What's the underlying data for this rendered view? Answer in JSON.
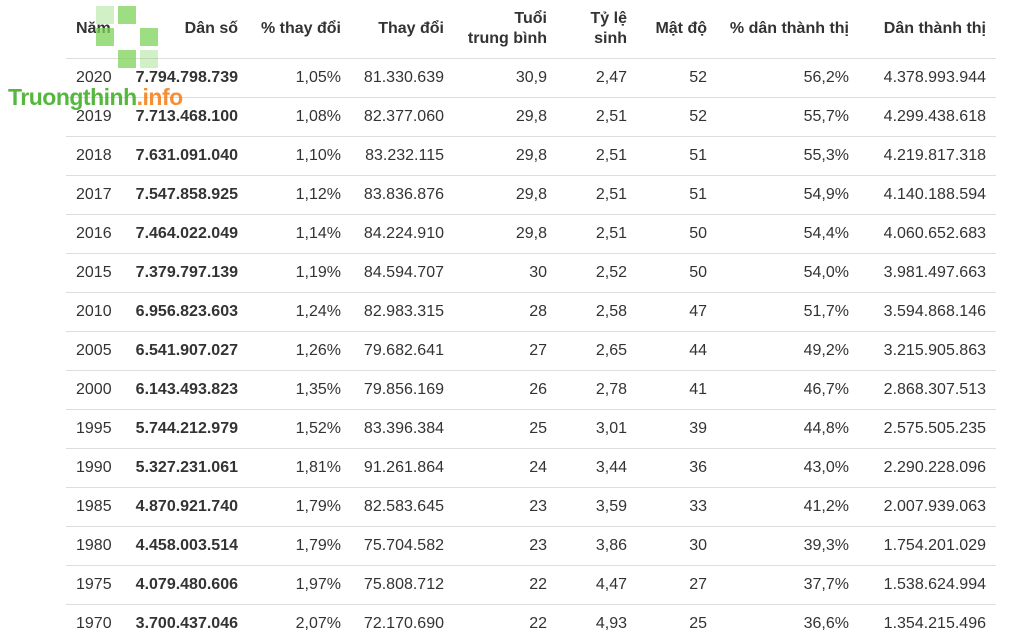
{
  "columns": [
    "Năm",
    "Dân số",
    "% thay đổi",
    "Thay đổi",
    "Tuổi trung bình",
    "Tỷ lệ sinh",
    "Mật độ",
    "% dân thành thị",
    "Dân thành thị"
  ],
  "median_age_header": {
    "line1": "Tuổi",
    "line2": "trung bình"
  },
  "rows": [
    {
      "year": "2020",
      "population": "7.794.798.739",
      "pct_change": "1,05%",
      "change": "81.330.639",
      "median_age": "30,9",
      "fertility": "2,47",
      "density": "52",
      "urban_pct": "56,2%",
      "urban_pop": "4.378.993.944"
    },
    {
      "year": "2019",
      "population": "7.713.468.100",
      "pct_change": "1,08%",
      "change": "82.377.060",
      "median_age": "29,8",
      "fertility": "2,51",
      "density": "52",
      "urban_pct": "55,7%",
      "urban_pop": "4.299.438.618"
    },
    {
      "year": "2018",
      "population": "7.631.091.040",
      "pct_change": "1,10%",
      "change": "83.232.115",
      "median_age": "29,8",
      "fertility": "2,51",
      "density": "51",
      "urban_pct": "55,3%",
      "urban_pop": "4.219.817.318"
    },
    {
      "year": "2017",
      "population": "7.547.858.925",
      "pct_change": "1,12%",
      "change": "83.836.876",
      "median_age": "29,8",
      "fertility": "2,51",
      "density": "51",
      "urban_pct": "54,9%",
      "urban_pop": "4.140.188.594"
    },
    {
      "year": "2016",
      "population": "7.464.022.049",
      "pct_change": "1,14%",
      "change": "84.224.910",
      "median_age": "29,8",
      "fertility": "2,51",
      "density": "50",
      "urban_pct": "54,4%",
      "urban_pop": "4.060.652.683"
    },
    {
      "year": "2015",
      "population": "7.379.797.139",
      "pct_change": "1,19%",
      "change": "84.594.707",
      "median_age": "30",
      "fertility": "2,52",
      "density": "50",
      "urban_pct": "54,0%",
      "urban_pop": "3.981.497.663"
    },
    {
      "year": "2010",
      "population": "6.956.823.603",
      "pct_change": "1,24%",
      "change": "82.983.315",
      "median_age": "28",
      "fertility": "2,58",
      "density": "47",
      "urban_pct": "51,7%",
      "urban_pop": "3.594.868.146"
    },
    {
      "year": "2005",
      "population": "6.541.907.027",
      "pct_change": "1,26%",
      "change": "79.682.641",
      "median_age": "27",
      "fertility": "2,65",
      "density": "44",
      "urban_pct": "49,2%",
      "urban_pop": "3.215.905.863"
    },
    {
      "year": "2000",
      "population": "6.143.493.823",
      "pct_change": "1,35%",
      "change": "79.856.169",
      "median_age": "26",
      "fertility": "2,78",
      "density": "41",
      "urban_pct": "46,7%",
      "urban_pop": "2.868.307.513"
    },
    {
      "year": "1995",
      "population": "5.744.212.979",
      "pct_change": "1,52%",
      "change": "83.396.384",
      "median_age": "25",
      "fertility": "3,01",
      "density": "39",
      "urban_pct": "44,8%",
      "urban_pop": "2.575.505.235"
    },
    {
      "year": "1990",
      "population": "5.327.231.061",
      "pct_change": "1,81%",
      "change": "91.261.864",
      "median_age": "24",
      "fertility": "3,44",
      "density": "36",
      "urban_pct": "43,0%",
      "urban_pop": "2.290.228.096"
    },
    {
      "year": "1985",
      "population": "4.870.921.740",
      "pct_change": "1,79%",
      "change": "82.583.645",
      "median_age": "23",
      "fertility": "3,59",
      "density": "33",
      "urban_pct": "41,2%",
      "urban_pop": "2.007.939.063"
    },
    {
      "year": "1980",
      "population": "4.458.003.514",
      "pct_change": "1,79%",
      "change": "75.704.582",
      "median_age": "23",
      "fertility": "3,86",
      "density": "30",
      "urban_pct": "39,3%",
      "urban_pop": "1.754.201.029"
    },
    {
      "year": "1975",
      "population": "4.079.480.606",
      "pct_change": "1,97%",
      "change": "75.808.712",
      "median_age": "22",
      "fertility": "4,47",
      "density": "27",
      "urban_pct": "37,7%",
      "urban_pop": "1.538.624.994"
    },
    {
      "year": "1970",
      "population": "3.700.437.046",
      "pct_change": "2,07%",
      "change": "72.170.690",
      "median_age": "22",
      "fertility": "4,93",
      "density": "25",
      "urban_pct": "36,6%",
      "urban_pop": "1.354.215.496"
    }
  ],
  "watermark": {
    "part1": "Truongthinh",
    "part2": ".info",
    "color_green": "#43b02a",
    "color_orange": "#f58220",
    "icon": "grid-squares-logo-icon"
  }
}
